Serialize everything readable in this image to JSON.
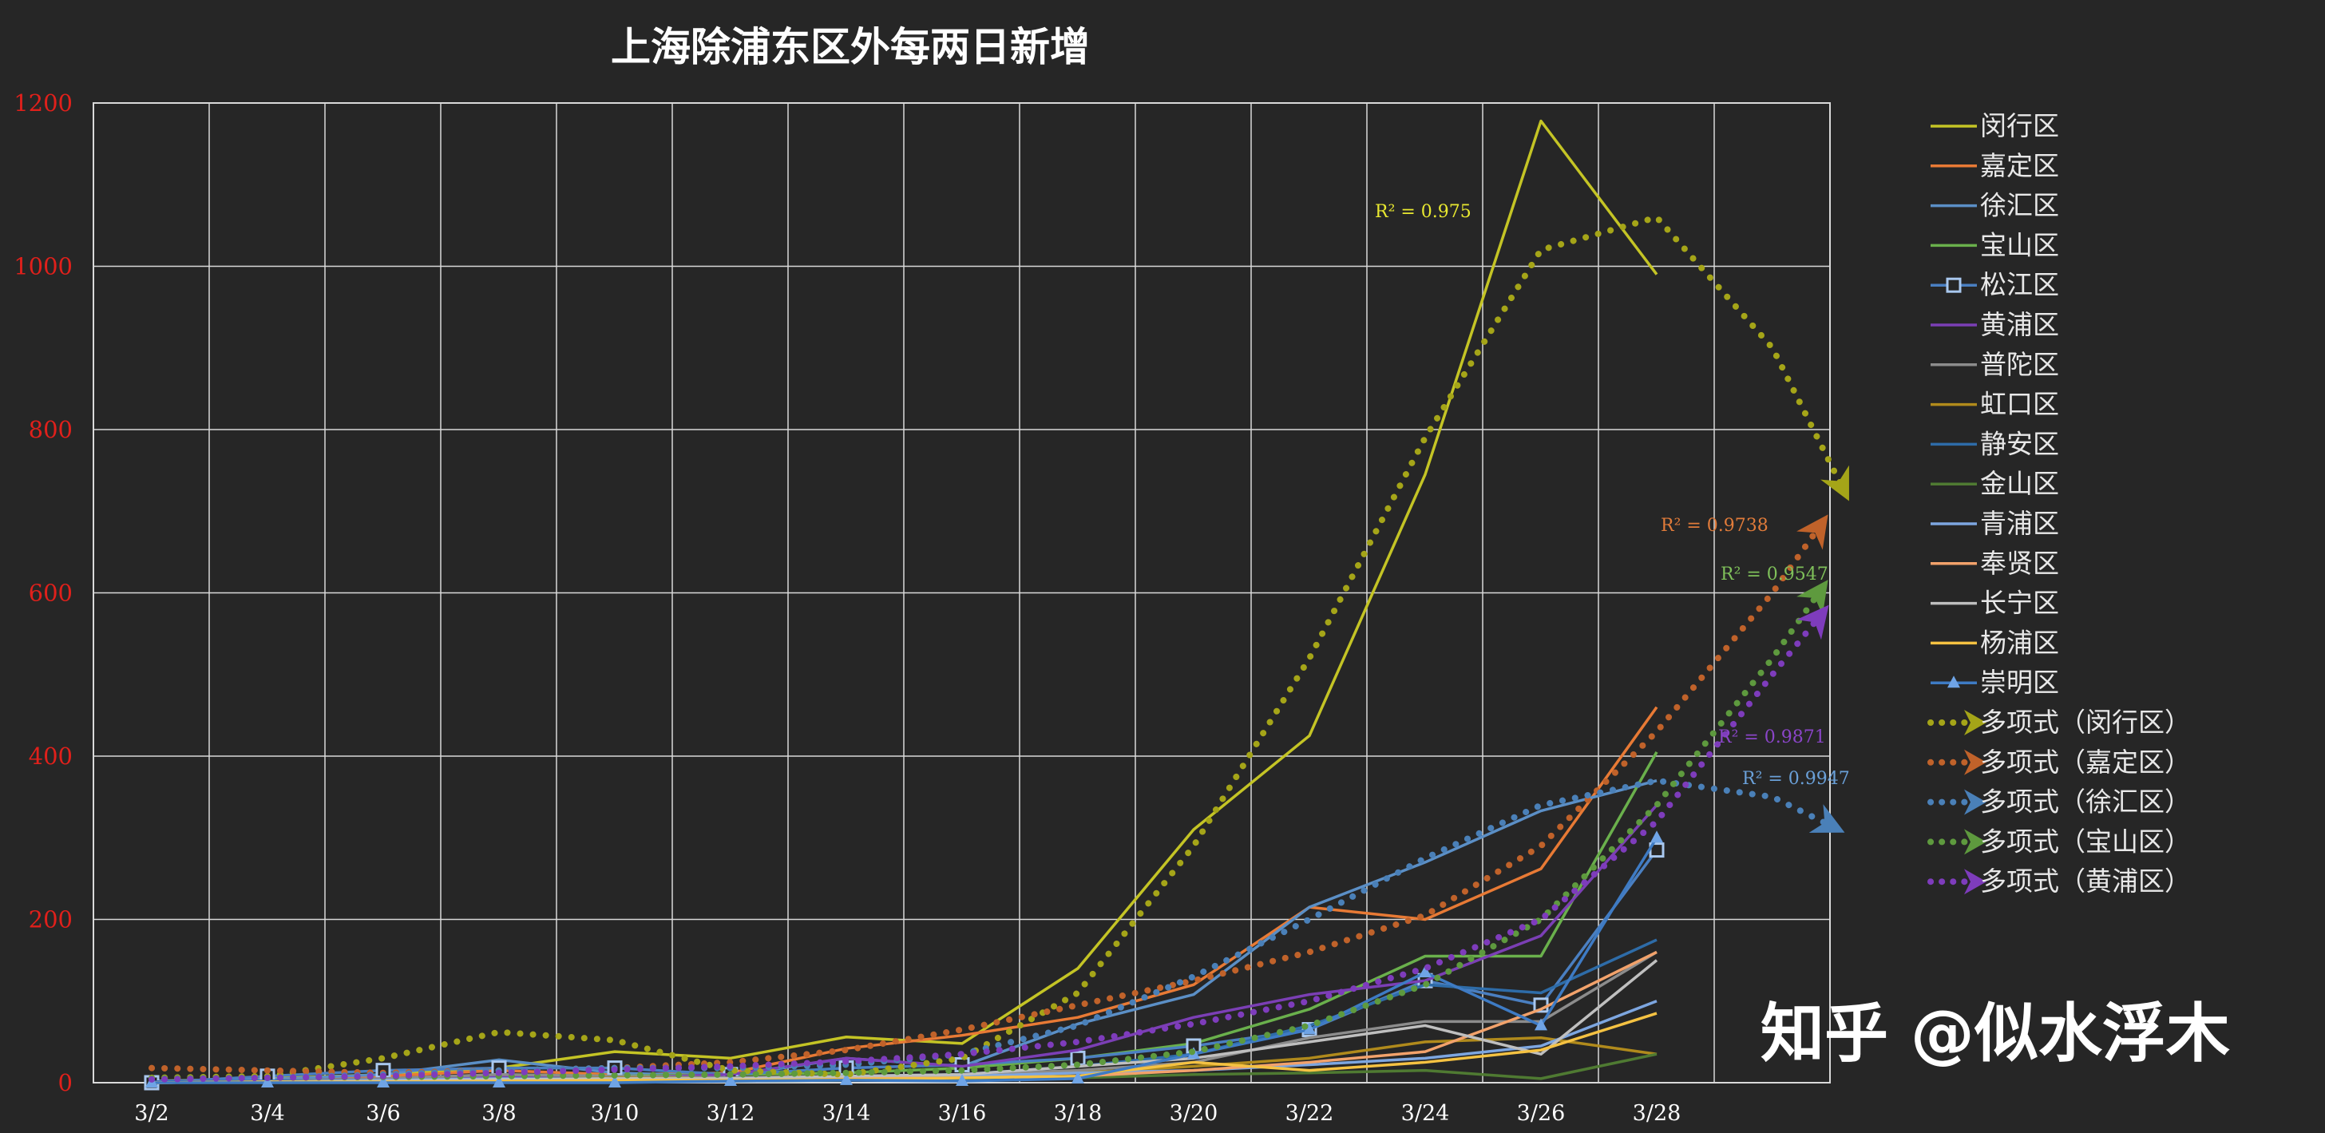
{
  "chart_data": {
    "type": "line",
    "title": "上海除浦东区外每两日新增",
    "xlabel": "",
    "ylabel": "",
    "ylim": [
      0,
      1200
    ],
    "yticks": [
      "0",
      "200",
      "400",
      "600",
      "800",
      "1000",
      "1200"
    ],
    "categories": [
      "3/2",
      "3/4",
      "3/6",
      "3/8",
      "3/10",
      "3/12",
      "3/14",
      "3/16",
      "3/18",
      "3/20",
      "3/22",
      "3/24",
      "3/26",
      "3/28"
    ],
    "grid": true,
    "legend_position": "right",
    "series": [
      {
        "name": "闵行区",
        "color": "#c4c425",
        "style": "line",
        "values": [
          2,
          5,
          10,
          18,
          38,
          30,
          56,
          48,
          140,
          310,
          425,
          745,
          1178,
          990
        ]
      },
      {
        "name": "嘉定区",
        "color": "#e87a35",
        "style": "line",
        "values": [
          1,
          3,
          8,
          15,
          10,
          12,
          42,
          58,
          80,
          120,
          215,
          200,
          262,
          460
        ]
      },
      {
        "name": "徐汇区",
        "color": "#5b8fc6",
        "style": "line",
        "values": [
          2,
          4,
          10,
          28,
          12,
          8,
          30,
          20,
          72,
          108,
          215,
          270,
          333,
          370
        ]
      },
      {
        "name": "宝山区",
        "color": "#6ab04c",
        "style": "line",
        "values": [
          1,
          2,
          5,
          10,
          8,
          10,
          12,
          18,
          30,
          48,
          90,
          155,
          155,
          405
        ]
      },
      {
        "name": "松江区",
        "color": "#4a7fc1",
        "style": "marker-square",
        "values": [
          0,
          8,
          15,
          18,
          18,
          10,
          18,
          22,
          30,
          45,
          65,
          125,
          95,
          285
        ]
      },
      {
        "name": "黄浦区",
        "color": "#7b3fb5",
        "style": "line",
        "values": [
          1,
          2,
          5,
          8,
          6,
          10,
          30,
          20,
          40,
          80,
          108,
          125,
          180,
          340
        ]
      },
      {
        "name": "普陀区",
        "color": "#8c8c8c",
        "style": "line",
        "values": [
          0,
          2,
          5,
          10,
          8,
          6,
          8,
          10,
          15,
          25,
          55,
          75,
          75,
          160
        ]
      },
      {
        "name": "虹口区",
        "color": "#b08a1c",
        "style": "line",
        "values": [
          0,
          1,
          2,
          4,
          6,
          5,
          6,
          8,
          12,
          20,
          30,
          50,
          55,
          35
        ]
      },
      {
        "name": "静安区",
        "color": "#2e6ca8",
        "style": "line",
        "values": [
          1,
          2,
          3,
          5,
          5,
          4,
          8,
          10,
          20,
          35,
          70,
          120,
          110,
          175
        ]
      },
      {
        "name": "金山区",
        "color": "#4f7a32",
        "style": "line",
        "values": [
          0,
          1,
          1,
          2,
          3,
          2,
          3,
          5,
          6,
          10,
          12,
          15,
          5,
          35
        ]
      },
      {
        "name": "青浦区",
        "color": "#7da6e0",
        "style": "line",
        "values": [
          0,
          1,
          3,
          5,
          4,
          5,
          6,
          8,
          12,
          15,
          22,
          30,
          45,
          100
        ]
      },
      {
        "name": "奉贤区",
        "color": "#f2a26b",
        "style": "line",
        "values": [
          0,
          1,
          2,
          3,
          3,
          4,
          5,
          6,
          8,
          15,
          25,
          38,
          90,
          160
        ]
      },
      {
        "name": "长宁区",
        "color": "#bfbfbf",
        "style": "line",
        "values": [
          0,
          1,
          2,
          4,
          5,
          5,
          8,
          10,
          20,
          30,
          50,
          70,
          35,
          150
        ]
      },
      {
        "name": "杨浦区",
        "color": "#f5c242",
        "style": "line",
        "values": [
          0,
          1,
          1,
          2,
          3,
          3,
          4,
          6,
          8,
          25,
          15,
          25,
          40,
          85
        ]
      },
      {
        "name": "崇明区",
        "color": "#3e7bc4",
        "style": "marker-triangle",
        "values": [
          0,
          0,
          0,
          0,
          0,
          2,
          3,
          2,
          5,
          35,
          65,
          135,
          70,
          300
        ]
      }
    ],
    "trendlines": [
      {
        "name": "多项式（闵行区）",
        "color": "#a5a518",
        "r_squared": "R² = 0.975",
        "points": [
          [
            0,
            6
          ],
          [
            1,
            8
          ],
          [
            2,
            30
          ],
          [
            3,
            62
          ],
          [
            4,
            52
          ],
          [
            5,
            15
          ],
          [
            6,
            10
          ],
          [
            7,
            30
          ],
          [
            8,
            110
          ],
          [
            9,
            290
          ],
          [
            10,
            520
          ],
          [
            11,
            790
          ],
          [
            12,
            1020
          ],
          [
            13,
            1060
          ],
          [
            14,
            900
          ],
          [
            14.6,
            730
          ]
        ]
      },
      {
        "name": "多项式（嘉定区）",
        "color": "#c0622a",
        "r_squared": "R² = 0.9738",
        "points": [
          [
            0,
            18
          ],
          [
            1,
            15
          ],
          [
            2,
            12
          ],
          [
            3,
            15
          ],
          [
            4,
            18
          ],
          [
            5,
            25
          ],
          [
            6,
            40
          ],
          [
            7,
            65
          ],
          [
            8,
            95
          ],
          [
            9,
            125
          ],
          [
            10,
            160
          ],
          [
            11,
            205
          ],
          [
            12,
            290
          ],
          [
            13,
            430
          ],
          [
            14,
            600
          ],
          [
            14.4,
            680
          ]
        ]
      },
      {
        "name": "多项式（徐汇区）",
        "color": "#4a80b8",
        "r_squared": "R² = 0.9947",
        "points": [
          [
            0,
            5
          ],
          [
            1,
            6
          ],
          [
            2,
            10
          ],
          [
            3,
            15
          ],
          [
            4,
            18
          ],
          [
            5,
            18
          ],
          [
            6,
            22
          ],
          [
            7,
            35
          ],
          [
            8,
            70
          ],
          [
            9,
            130
          ],
          [
            10,
            200
          ],
          [
            11,
            275
          ],
          [
            12,
            340
          ],
          [
            13,
            370
          ],
          [
            14,
            350
          ],
          [
            14.5,
            315
          ]
        ]
      },
      {
        "name": "多项式（宝山区）",
        "color": "#5e9a3e",
        "r_squared": "R² = 0.9547",
        "points": [
          [
            0,
            5
          ],
          [
            1,
            6
          ],
          [
            2,
            7
          ],
          [
            3,
            8
          ],
          [
            4,
            9
          ],
          [
            5,
            10
          ],
          [
            6,
            12
          ],
          [
            7,
            15
          ],
          [
            8,
            22
          ],
          [
            9,
            38
          ],
          [
            10,
            70
          ],
          [
            11,
            120
          ],
          [
            12,
            200
          ],
          [
            13,
            340
          ],
          [
            14,
            520
          ],
          [
            14.4,
            600
          ]
        ]
      },
      {
        "name": "多项式（黄浦区）",
        "color": "#7e3cbc",
        "r_squared": "R² = 0.9871",
        "points": [
          [
            0,
            4
          ],
          [
            1,
            6
          ],
          [
            2,
            8
          ],
          [
            3,
            12
          ],
          [
            4,
            16
          ],
          [
            5,
            20
          ],
          [
            6,
            26
          ],
          [
            7,
            35
          ],
          [
            8,
            50
          ],
          [
            9,
            72
          ],
          [
            10,
            100
          ],
          [
            11,
            140
          ],
          [
            12,
            200
          ],
          [
            13,
            320
          ],
          [
            14,
            500
          ],
          [
            14.4,
            570
          ]
        ]
      }
    ],
    "watermark": "知乎 @似水浮木"
  }
}
